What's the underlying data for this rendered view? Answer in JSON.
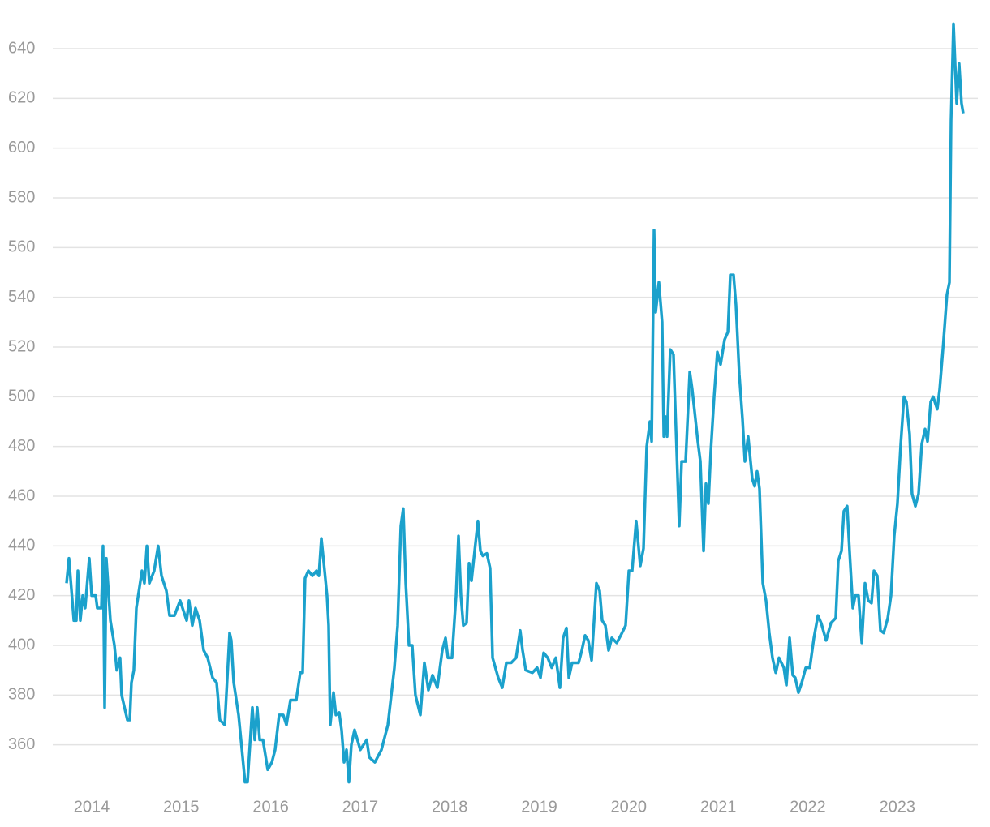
{
  "chart_data": {
    "type": "line",
    "x": [
      2013.719,
      2013.746,
      2013.801,
      2013.828,
      2013.846,
      2013.873,
      2013.9,
      2013.927,
      2013.973,
      2014.0,
      2014.045,
      2014.063,
      2014.109,
      2014.127,
      2014.145,
      2014.163,
      2014.209,
      2014.254,
      2014.281,
      2014.317,
      2014.335,
      2014.399,
      2014.426,
      2014.444,
      2014.471,
      2014.499,
      2014.562,
      2014.589,
      2014.617,
      2014.644,
      2014.698,
      2014.743,
      2014.78,
      2014.834,
      2014.87,
      2014.925,
      2014.988,
      2015.061,
      2015.088,
      2015.124,
      2015.16,
      2015.206,
      2015.251,
      2015.296,
      2015.351,
      2015.396,
      2015.432,
      2015.487,
      2015.541,
      2015.559,
      2015.587,
      2015.641,
      2015.668,
      2015.713,
      2015.741,
      2015.795,
      2015.822,
      2015.849,
      2015.877,
      2015.913,
      2015.967,
      2016.013,
      2016.049,
      2016.094,
      2016.14,
      2016.176,
      2016.221,
      2016.285,
      2016.33,
      2016.357,
      2016.384,
      2016.421,
      2016.466,
      2016.511,
      2016.538,
      2016.566,
      2016.602,
      2016.629,
      2016.647,
      2016.665,
      2016.702,
      2016.729,
      2016.765,
      2016.792,
      2016.82,
      2016.847,
      2016.874,
      2016.901,
      2016.937,
      2017.001,
      2017.073,
      2017.101,
      2017.164,
      2017.237,
      2017.309,
      2017.382,
      2017.418,
      2017.454,
      2017.481,
      2017.509,
      2017.545,
      2017.581,
      2017.617,
      2017.672,
      2017.717,
      2017.762,
      2017.808,
      2017.862,
      2017.917,
      2017.953,
      2017.98,
      2018.025,
      2018.071,
      2018.098,
      2018.125,
      2018.152,
      2018.188,
      2018.216,
      2018.243,
      2018.279,
      2018.315,
      2018.343,
      2018.37,
      2018.415,
      2018.451,
      2018.479,
      2018.542,
      2018.587,
      2018.633,
      2018.687,
      2018.742,
      2018.787,
      2018.814,
      2018.85,
      2018.923,
      2018.977,
      2019.014,
      2019.05,
      2019.095,
      2019.14,
      2019.186,
      2019.231,
      2019.267,
      2019.304,
      2019.331,
      2019.367,
      2019.44,
      2019.476,
      2019.512,
      2019.548,
      2019.585,
      2019.639,
      2019.675,
      2019.703,
      2019.739,
      2019.775,
      2019.811,
      2019.866,
      2019.911,
      2019.965,
      2020.002,
      2020.038,
      2020.083,
      2020.129,
      2020.165,
      2020.201,
      2020.237,
      2020.256,
      2020.283,
      2020.301,
      2020.337,
      2020.373,
      2020.392,
      2020.41,
      2020.428,
      2020.464,
      2020.5,
      2020.537,
      2020.564,
      2020.591,
      2020.636,
      2020.682,
      2020.709,
      2020.772,
      2020.8,
      2020.836,
      2020.863,
      2020.89,
      2020.917,
      2020.954,
      2020.99,
      2021.026,
      2021.071,
      2021.108,
      2021.135,
      2021.171,
      2021.198,
      2021.235,
      2021.271,
      2021.298,
      2021.334,
      2021.38,
      2021.407,
      2021.434,
      2021.461,
      2021.498,
      2021.534,
      2021.57,
      2021.606,
      2021.643,
      2021.679,
      2021.733,
      2021.761,
      2021.797,
      2021.833,
      2021.86,
      2021.896,
      2021.933,
      2021.978,
      2022.023,
      2022.069,
      2022.114,
      2022.15,
      2022.205,
      2022.259,
      2022.313,
      2022.341,
      2022.377,
      2022.404,
      2022.44,
      2022.467,
      2022.504,
      2022.531,
      2022.567,
      2022.604,
      2022.64,
      2022.676,
      2022.712,
      2022.74,
      2022.776,
      2022.812,
      2022.848,
      2022.894,
      2022.93,
      2022.966,
      2023.002,
      2023.039,
      2023.075,
      2023.102,
      2023.138,
      2023.165,
      2023.202,
      2023.238,
      2023.274,
      2023.311,
      2023.338,
      2023.374,
      2023.401,
      2023.447,
      2023.474,
      2023.51,
      2023.555,
      2023.583,
      2023.601,
      2023.628,
      2023.664,
      2023.691,
      2023.718,
      2023.737
    ],
    "values": [
      425,
      435,
      410,
      410,
      430,
      410,
      420,
      415,
      435,
      420,
      420,
      415,
      415,
      440,
      375,
      435,
      410,
      400,
      390,
      395,
      380,
      370,
      370,
      385,
      390,
      415,
      430,
      425,
      440,
      425,
      430,
      440,
      428,
      422,
      412,
      412,
      418,
      410,
      418,
      408,
      415,
      410,
      398,
      395,
      387,
      385,
      370,
      368,
      405,
      402,
      385,
      372,
      362,
      345,
      345,
      375,
      362,
      375,
      362,
      362,
      350,
      353,
      358,
      372,
      372,
      368,
      378,
      378,
      389,
      389,
      427,
      430,
      428,
      430,
      428,
      443,
      430,
      420,
      408,
      368,
      381,
      372,
      373,
      366,
      353,
      358,
      345,
      360,
      366,
      358,
      362,
      355,
      353,
      358,
      368,
      391,
      408,
      448,
      455,
      425,
      400,
      400,
      380,
      372,
      393,
      382,
      388,
      383,
      398,
      403,
      395,
      395,
      420,
      444,
      420,
      408,
      409,
      433,
      426,
      438,
      450,
      438,
      436,
      437,
      431,
      395,
      387,
      383,
      393,
      393,
      395,
      406,
      398,
      390,
      389,
      391,
      387,
      397,
      395,
      391,
      395,
      383,
      403,
      407,
      387,
      393,
      393,
      398,
      404,
      402,
      394,
      425,
      422,
      410,
      408,
      398,
      403,
      401,
      404,
      408,
      430,
      430,
      450,
      432,
      439,
      480,
      490,
      482,
      567,
      534,
      546,
      530,
      484,
      492,
      484,
      519,
      517,
      477,
      448,
      474,
      474,
      510,
      503,
      482,
      474,
      438,
      465,
      457,
      478,
      500,
      518,
      513,
      523,
      526,
      549,
      549,
      537,
      509,
      491,
      474,
      484,
      467,
      464,
      470,
      463,
      425,
      418,
      405,
      395,
      389,
      395,
      391,
      384,
      403,
      388,
      387,
      381,
      385,
      391,
      391,
      403,
      412,
      409,
      402,
      409,
      411,
      434,
      438,
      454,
      456,
      438,
      415,
      420,
      420,
      401,
      425,
      418,
      417,
      430,
      428,
      406,
      405,
      411,
      420,
      444,
      457,
      481,
      500,
      498,
      485,
      461,
      456,
      461,
      481,
      487,
      482,
      498,
      500,
      495,
      503,
      519,
      541,
      546,
      611,
      650,
      618,
      634,
      618,
      614
    ],
    "color": "#1ba1cc",
    "xlim": [
      2013.565,
      2023.9
    ],
    "xticks": [
      2014,
      2015,
      2016,
      2017,
      2018,
      2019,
      2020,
      2021,
      2022,
      2023
    ],
    "ylim": [
      340,
      655
    ],
    "yticks": [
      360,
      380,
      400,
      420,
      440,
      460,
      480,
      500,
      520,
      540,
      560,
      580,
      600,
      620,
      640
    ],
    "grid": true
  }
}
